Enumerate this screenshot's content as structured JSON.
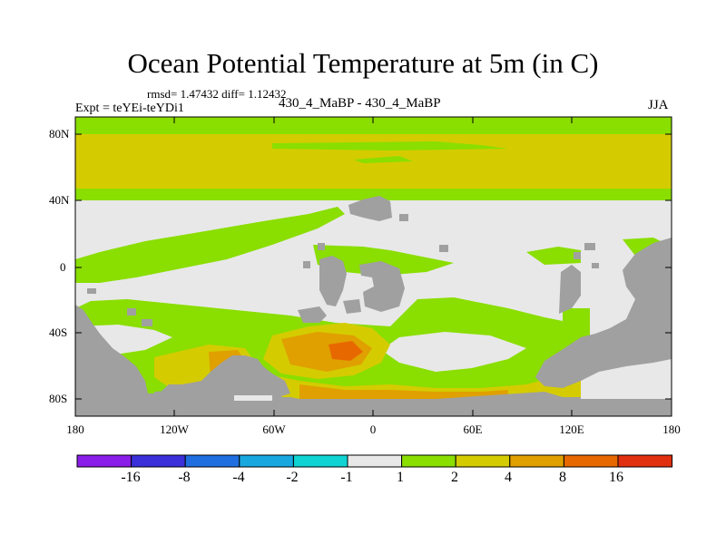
{
  "header": {
    "title": "Ocean Potential Temperature at 5m (in C)",
    "stats": "rmsd= 1.47432 diff= 1.12432",
    "experiment": "Expt = teYEi-teYDi1",
    "period": "430_4_MaBP - 430_4_MaBP",
    "season": "JJA"
  },
  "axes": {
    "y_ticks": [
      "80N",
      "40N",
      "0",
      "40S",
      "80S"
    ],
    "x_ticks": [
      "180",
      "120W",
      "60W",
      "0",
      "60E",
      "120E",
      "180"
    ]
  },
  "colorbar": {
    "labels": [
      "-16",
      "-8",
      "-4",
      "-2",
      "-1",
      "1",
      "2",
      "4",
      "8",
      "16"
    ],
    "colors": [
      "#8a1ee8",
      "#3b2fd9",
      "#1f6fe0",
      "#18a8e0",
      "#10d4d4",
      "#e8e8e8",
      "#8ade00",
      "#d4cc00",
      "#e0a000",
      "#e86800",
      "#e03010"
    ]
  },
  "map_colors": {
    "land": "#a0a0a0",
    "near_zero": "#e8e8e8",
    "warm_1_2": "#8ade00",
    "warm_2_4": "#d4cc00",
    "warm_4_8": "#e0a000",
    "warm_8_16": "#e86800"
  }
}
